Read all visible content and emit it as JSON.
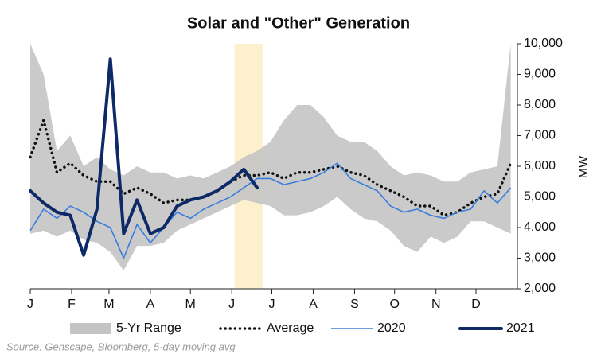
{
  "chart_data": {
    "type": "line",
    "title": "Solar and \"Other\" Generation",
    "y_label": "MW",
    "source": "Source: Genscape, Bloomberg, 5-day moving avg",
    "x": [
      0,
      10,
      20,
      30,
      40,
      50,
      60,
      70,
      80,
      90,
      100,
      110,
      120,
      130,
      140,
      150,
      160,
      170,
      180,
      190,
      200,
      210,
      220,
      230,
      240,
      250,
      260,
      270,
      280,
      290,
      300,
      310,
      320,
      330,
      340,
      350,
      360
    ],
    "xlim": [
      0,
      365
    ],
    "xticks": [
      {
        "value": 0,
        "label": "J"
      },
      {
        "value": 31,
        "label": "F"
      },
      {
        "value": 59,
        "label": "M"
      },
      {
        "value": 90,
        "label": "A"
      },
      {
        "value": 120,
        "label": "M"
      },
      {
        "value": 151,
        "label": "J"
      },
      {
        "value": 181,
        "label": "J"
      },
      {
        "value": 212,
        "label": "A"
      },
      {
        "value": 243,
        "label": "S"
      },
      {
        "value": 273,
        "label": "O"
      },
      {
        "value": 304,
        "label": "N"
      },
      {
        "value": 334,
        "label": "D"
      }
    ],
    "ylim": [
      2000,
      10000
    ],
    "yticks": [
      {
        "value": 2000,
        "label": "2,000"
      },
      {
        "value": 3000,
        "label": "3,000"
      },
      {
        "value": 4000,
        "label": "4,000"
      },
      {
        "value": 5000,
        "label": "5,000"
      },
      {
        "value": 6000,
        "label": "6,000"
      },
      {
        "value": 7000,
        "label": "7,000"
      },
      {
        "value": 8000,
        "label": "8,000"
      },
      {
        "value": 9000,
        "label": "9,000"
      },
      {
        "value": 10000,
        "label": "10,000"
      }
    ],
    "highlight_x": [
      153,
      174
    ],
    "highlight_color": "#fdf0c8",
    "series": [
      {
        "name": "5-Yr Range",
        "style": "range",
        "color": "#c4c4c4",
        "low": [
          3800,
          3900,
          3700,
          3900,
          3600,
          3500,
          3200,
          2600,
          3400,
          3400,
          3500,
          3900,
          4100,
          4300,
          4500,
          4700,
          4900,
          4800,
          4700,
          4400,
          4400,
          4500,
          4700,
          5000,
          4600,
          4300,
          4200,
          3900,
          3400,
          3200,
          3700,
          3500,
          3700,
          4200,
          4200,
          4000,
          3800
        ],
        "high": [
          10000,
          9000,
          6500,
          7000,
          6000,
          6300,
          5900,
          5700,
          6000,
          5800,
          5800,
          5600,
          5700,
          5600,
          5800,
          6000,
          6300,
          6500,
          6800,
          7500,
          8000,
          8000,
          7600,
          7000,
          6800,
          6800,
          6500,
          6000,
          5700,
          5800,
          5700,
          5500,
          5500,
          5800,
          5900,
          6000,
          10000
        ]
      },
      {
        "name": "Average",
        "style": "dotted",
        "color": "#111111",
        "values": [
          6300,
          7500,
          5800,
          6100,
          5700,
          5500,
          5500,
          5100,
          5300,
          5100,
          4800,
          4900,
          4900,
          5000,
          5200,
          5500,
          5700,
          5700,
          5800,
          5600,
          5800,
          5800,
          5900,
          6000,
          5800,
          5700,
          5400,
          5200,
          5000,
          4700,
          4700,
          4400,
          4500,
          4800,
          5000,
          5100,
          6100
        ]
      },
      {
        "name": "2020",
        "style": "thin",
        "color": "#3b7ddd",
        "values": [
          3900,
          4600,
          4300,
          4700,
          4500,
          4200,
          4000,
          3000,
          4100,
          3500,
          4000,
          4500,
          4300,
          4600,
          4800,
          5000,
          5300,
          5600,
          5600,
          5400,
          5500,
          5600,
          5800,
          6100,
          5600,
          5400,
          5200,
          4700,
          4500,
          4600,
          4400,
          4300,
          4500,
          4600,
          5200,
          4800,
          5300
        ]
      },
      {
        "name": "2021",
        "style": "thick",
        "color": "#0d2a66",
        "values": [
          5200,
          4800,
          4500,
          4400,
          3100,
          4600,
          9500,
          3800,
          4900,
          3800,
          4000,
          4700,
          4900,
          5000,
          5200,
          5500,
          5900,
          5300,
          null,
          null,
          null,
          null,
          null,
          null,
          null,
          null,
          null,
          null,
          null,
          null,
          null,
          null,
          null,
          null,
          null,
          null,
          null
        ]
      }
    ]
  }
}
